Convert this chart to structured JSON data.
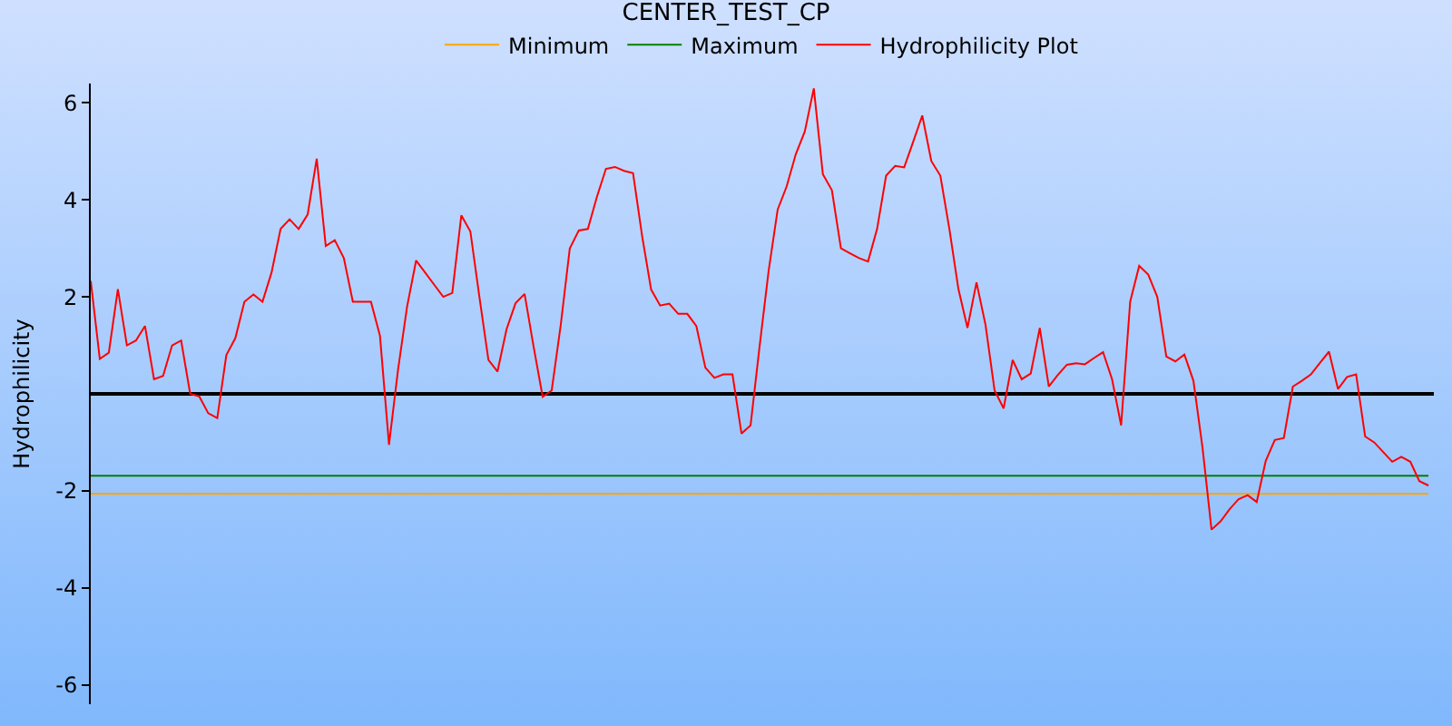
{
  "chart_data": {
    "type": "line",
    "title": "CENTER_TEST_CP",
    "ylabel": "Hydrophilicity",
    "ylim": [
      -6.4,
      6.4
    ],
    "yticks": [
      -6,
      -4,
      -2,
      2,
      4,
      6
    ],
    "tick_labels": "y",
    "grid": false,
    "legend": "top",
    "marker": "none",
    "line_style": "solid",
    "categories": [
      null,
      null,
      null,
      null,
      null,
      null,
      null,
      null,
      null,
      null,
      null,
      null,
      null,
      null,
      null,
      null,
      null,
      null,
      null,
      null,
      null,
      null,
      null,
      null,
      null,
      null,
      null,
      null,
      null,
      null,
      null,
      null,
      null,
      null,
      null,
      null,
      null,
      null,
      null,
      null,
      null,
      null,
      null,
      null,
      null,
      null,
      null,
      null,
      null,
      null,
      null,
      null,
      null,
      null,
      null,
      null,
      null,
      null,
      null,
      null,
      null,
      null,
      null,
      null,
      null,
      null,
      null,
      null,
      null,
      null,
      null,
      null,
      null,
      null,
      null,
      null,
      null,
      null,
      null,
      null,
      null,
      null,
      null,
      null,
      null,
      null,
      null,
      null,
      null,
      null,
      null,
      null,
      null,
      null,
      null,
      null,
      null,
      null,
      null,
      null,
      null,
      null,
      null,
      null,
      null,
      null,
      null,
      null,
      null,
      null,
      null,
      null,
      null,
      null,
      null,
      null,
      null,
      null,
      null,
      null,
      null,
      null,
      null,
      null,
      null,
      null,
      null,
      null,
      null,
      null,
      null,
      null,
      null,
      null,
      null,
      null,
      null,
      null,
      null,
      null,
      null,
      null,
      null,
      null,
      null,
      null,
      null,
      null,
      null
    ],
    "series": [
      {
        "name": "Minimum",
        "color": "#ffa500",
        "values": [
          -2.06,
          -2.06,
          -2.06,
          -2.06,
          -2.06,
          -2.06,
          -2.06,
          -2.06,
          -2.06,
          -2.06,
          -2.06,
          -2.06,
          -2.06,
          -2.06,
          -2.06,
          -2.06,
          -2.06,
          -2.06,
          -2.06,
          -2.06,
          -2.06,
          -2.06,
          -2.06,
          -2.06,
          -2.06,
          -2.06,
          -2.06,
          -2.06,
          -2.06,
          -2.06,
          -2.06,
          -2.06,
          -2.06,
          -2.06,
          -2.06,
          -2.06,
          -2.06,
          -2.06,
          -2.06,
          -2.06,
          -2.06,
          -2.06,
          -2.06,
          -2.06,
          -2.06,
          -2.06,
          -2.06,
          -2.06,
          -2.06,
          -2.06,
          -2.06,
          -2.06,
          -2.06,
          -2.06,
          -2.06,
          -2.06,
          -2.06,
          -2.06,
          -2.06,
          -2.06,
          -2.06,
          -2.06,
          -2.06,
          -2.06,
          -2.06,
          -2.06,
          -2.06,
          -2.06,
          -2.06,
          -2.06,
          -2.06,
          -2.06,
          -2.06,
          -2.06,
          -2.06,
          -2.06,
          -2.06,
          -2.06,
          -2.06,
          -2.06,
          -2.06,
          -2.06,
          -2.06,
          -2.06,
          -2.06,
          -2.06,
          -2.06,
          -2.06,
          -2.06,
          -2.06,
          -2.06,
          -2.06,
          -2.06,
          -2.06,
          -2.06,
          -2.06,
          -2.06,
          -2.06,
          -2.06,
          -2.06,
          -2.06,
          -2.06,
          -2.06,
          -2.06,
          -2.06,
          -2.06,
          -2.06,
          -2.06,
          -2.06,
          -2.06,
          -2.06,
          -2.06,
          -2.06,
          -2.06,
          -2.06,
          -2.06,
          -2.06,
          -2.06,
          -2.06,
          -2.06,
          -2.06,
          -2.06,
          -2.06,
          -2.06,
          -2.06,
          -2.06,
          -2.06,
          -2.06,
          -2.06,
          -2.06,
          -2.06,
          -2.06,
          -2.06,
          -2.06,
          -2.06,
          -2.06,
          -2.06,
          -2.06,
          -2.06,
          -2.06,
          -2.06,
          -2.06,
          -2.06,
          -2.06,
          -2.06,
          -2.06,
          -2.06,
          -2.06,
          -2.06
        ]
      },
      {
        "name": "Maximum",
        "color": "#008000",
        "values": [
          -1.69,
          -1.69,
          -1.69,
          -1.69,
          -1.69,
          -1.69,
          -1.69,
          -1.69,
          -1.69,
          -1.69,
          -1.69,
          -1.69,
          -1.69,
          -1.69,
          -1.69,
          -1.69,
          -1.69,
          -1.69,
          -1.69,
          -1.69,
          -1.69,
          -1.69,
          -1.69,
          -1.69,
          -1.69,
          -1.69,
          -1.69,
          -1.69,
          -1.69,
          -1.69,
          -1.69,
          -1.69,
          -1.69,
          -1.69,
          -1.69,
          -1.69,
          -1.69,
          -1.69,
          -1.69,
          -1.69,
          -1.69,
          -1.69,
          -1.69,
          -1.69,
          -1.69,
          -1.69,
          -1.69,
          -1.69,
          -1.69,
          -1.69,
          -1.69,
          -1.69,
          -1.69,
          -1.69,
          -1.69,
          -1.69,
          -1.69,
          -1.69,
          -1.69,
          -1.69,
          -1.69,
          -1.69,
          -1.69,
          -1.69,
          -1.69,
          -1.69,
          -1.69,
          -1.69,
          -1.69,
          -1.69,
          -1.69,
          -1.69,
          -1.69,
          -1.69,
          -1.69,
          -1.69,
          -1.69,
          -1.69,
          -1.69,
          -1.69,
          -1.69,
          -1.69,
          -1.69,
          -1.69,
          -1.69,
          -1.69,
          -1.69,
          -1.69,
          -1.69,
          -1.69,
          -1.69,
          -1.69,
          -1.69,
          -1.69,
          -1.69,
          -1.69,
          -1.69,
          -1.69,
          -1.69,
          -1.69,
          -1.69,
          -1.69,
          -1.69,
          -1.69,
          -1.69,
          -1.69,
          -1.69,
          -1.69,
          -1.69,
          -1.69,
          -1.69,
          -1.69,
          -1.69,
          -1.69,
          -1.69,
          -1.69,
          -1.69,
          -1.69,
          -1.69,
          -1.69,
          -1.69,
          -1.69,
          -1.69,
          -1.69,
          -1.69,
          -1.69,
          -1.69,
          -1.69,
          -1.69,
          -1.69,
          -1.69,
          -1.69,
          -1.69,
          -1.69,
          -1.69,
          -1.69,
          -1.69,
          -1.69,
          -1.69,
          -1.69,
          -1.69,
          -1.69,
          -1.69,
          -1.69,
          -1.69,
          -1.69,
          -1.69,
          -1.69,
          -1.69
        ]
      },
      {
        "name": "Hydrophilicity Plot",
        "color": "#ff0000",
        "values": [
          2.33,
          0.72,
          0.85,
          2.16,
          1.0,
          1.1,
          1.4,
          0.3,
          0.37,
          1.0,
          1.1,
          0.0,
          -0.05,
          -0.4,
          -0.5,
          0.8,
          1.15,
          1.9,
          2.05,
          1.9,
          2.5,
          3.4,
          3.6,
          3.4,
          3.7,
          4.85,
          3.05,
          3.17,
          2.8,
          1.9,
          1.9,
          1.9,
          1.2,
          -1.05,
          0.5,
          1.8,
          2.75,
          2.5,
          2.25,
          2.0,
          2.08,
          3.68,
          3.35,
          2.0,
          0.7,
          0.46,
          1.33,
          1.87,
          2.06,
          0.97,
          -0.06,
          0.07,
          1.42,
          3.0,
          3.37,
          3.4,
          4.06,
          4.64,
          4.68,
          4.6,
          4.55,
          3.26,
          2.15,
          1.82,
          1.86,
          1.65,
          1.65,
          1.4,
          0.54,
          0.33,
          0.4,
          0.4,
          -0.82,
          -0.65,
          0.98,
          2.54,
          3.8,
          4.28,
          4.94,
          5.41,
          6.3,
          4.53,
          4.2,
          3.0,
          2.9,
          2.8,
          2.73,
          3.4,
          4.5,
          4.7,
          4.67,
          5.2,
          5.74,
          4.8,
          4.5,
          3.4,
          2.16,
          1.36,
          2.3,
          1.42,
          0.07,
          -0.3,
          0.7,
          0.3,
          0.42,
          1.36,
          0.15,
          0.39,
          0.6,
          0.63,
          0.61,
          0.74,
          0.86,
          0.3,
          -0.65,
          1.9,
          2.64,
          2.46,
          2.0,
          0.77,
          0.67,
          0.81,
          0.27,
          -1.1,
          -2.8,
          -2.63,
          -2.38,
          -2.17,
          -2.09,
          -2.23,
          -1.38,
          -0.95,
          -0.91,
          0.15,
          0.27,
          0.4,
          0.64,
          0.87,
          0.1,
          0.35,
          0.4,
          -0.88,
          -1.0,
          -1.2,
          -1.4,
          -1.3,
          -1.4,
          -1.8,
          -1.89
        ]
      }
    ]
  }
}
